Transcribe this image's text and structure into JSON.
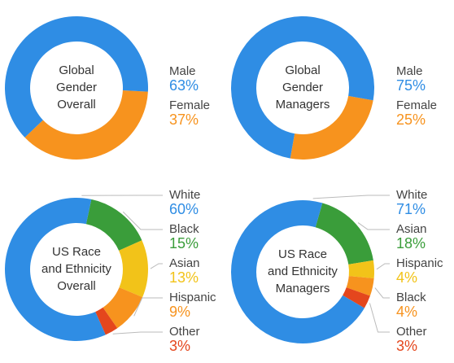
{
  "chart_data": [
    {
      "type": "pie",
      "title": [
        "Global",
        "Gender",
        "Overall"
      ],
      "categories": [
        "Male",
        "Female"
      ],
      "values": [
        63,
        37
      ],
      "value_labels": [
        "63%",
        "37%"
      ],
      "colors": [
        "#2f8de4",
        "#f7931e"
      ]
    },
    {
      "type": "pie",
      "title": [
        "Global",
        "Gender",
        "Managers"
      ],
      "categories": [
        "Male",
        "Female"
      ],
      "values": [
        75,
        25
      ],
      "value_labels": [
        "75%",
        "25%"
      ],
      "colors": [
        "#2f8de4",
        "#f7931e"
      ]
    },
    {
      "type": "pie",
      "title": [
        "US Race",
        "and Ethnicity",
        "Overall"
      ],
      "categories": [
        "White",
        "Black",
        "Asian",
        "Hispanic",
        "Other"
      ],
      "values": [
        60,
        15,
        13,
        9,
        3
      ],
      "value_labels": [
        "60%",
        "15%",
        "13%",
        "9%",
        "3%"
      ],
      "colors": [
        "#2f8de4",
        "#3a9d3a",
        "#f2c319",
        "#f7931e",
        "#e4461d"
      ]
    },
    {
      "type": "pie",
      "title": [
        "US Race",
        "and Ethnicity",
        "Managers"
      ],
      "categories": [
        "White",
        "Asian",
        "Hispanic",
        "Black",
        "Other"
      ],
      "values": [
        71,
        18,
        4,
        4,
        3
      ],
      "value_labels": [
        "71%",
        "18%",
        "4%",
        "4%",
        "3%"
      ],
      "colors": [
        "#2f8de4",
        "#3a9d3a",
        "#f2c319",
        "#f7931e",
        "#e4461d"
      ]
    }
  ]
}
